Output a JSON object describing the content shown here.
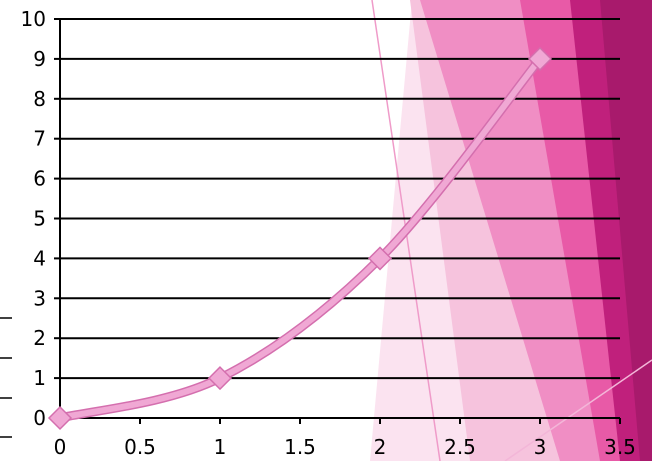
{
  "chart_data": {
    "type": "line",
    "title": "",
    "xlabel": "",
    "ylabel": "",
    "x": [
      0,
      1,
      2,
      3
    ],
    "series": [
      {
        "values": [
          0,
          1,
          4,
          9
        ],
        "color": "#f0a8d4",
        "marker": "diamond",
        "smooth": true
      }
    ],
    "xlim": [
      0,
      3.5
    ],
    "ylim": [
      0,
      10
    ],
    "x_ticks": [
      "0",
      "0.5",
      "1",
      "1.5",
      "2",
      "2.5",
      "3",
      "3.5"
    ],
    "y_ticks": [
      "0",
      "1",
      "2",
      "3",
      "4",
      "5",
      "6",
      "7",
      "8",
      "9",
      "10"
    ],
    "grid": true,
    "legend": "none"
  },
  "theme": {
    "background": "#ffffff",
    "gridline_color": "#000000",
    "accent_colors": [
      "#fbe3f0",
      "#f6c3dd",
      "#f08ec4",
      "#e85aa7",
      "#d42a8a",
      "#c0207c",
      "#a81a6c"
    ]
  }
}
